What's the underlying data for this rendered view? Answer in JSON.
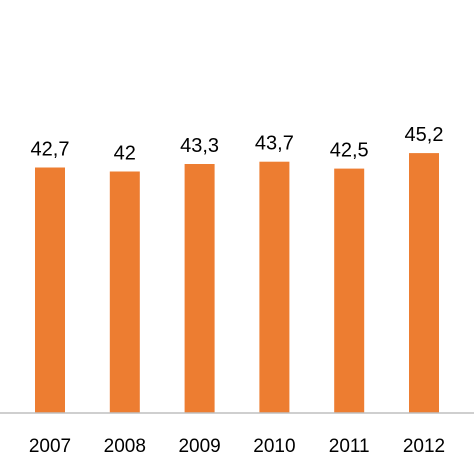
{
  "chart_data": {
    "type": "bar",
    "categories": [
      "2007",
      "2008",
      "2009",
      "2010",
      "2011",
      "2012"
    ],
    "values": [
      42.7,
      42,
      43.3,
      43.7,
      42.5,
      45.2
    ],
    "value_labels": [
      "42,7",
      "42",
      "43,3",
      "43,7",
      "42,5",
      "45,2"
    ],
    "bar_color": "#ED7D31",
    "axis_color": "#BFBFBF",
    "ylim": [
      0,
      50
    ],
    "grid": false,
    "legend": "none"
  }
}
